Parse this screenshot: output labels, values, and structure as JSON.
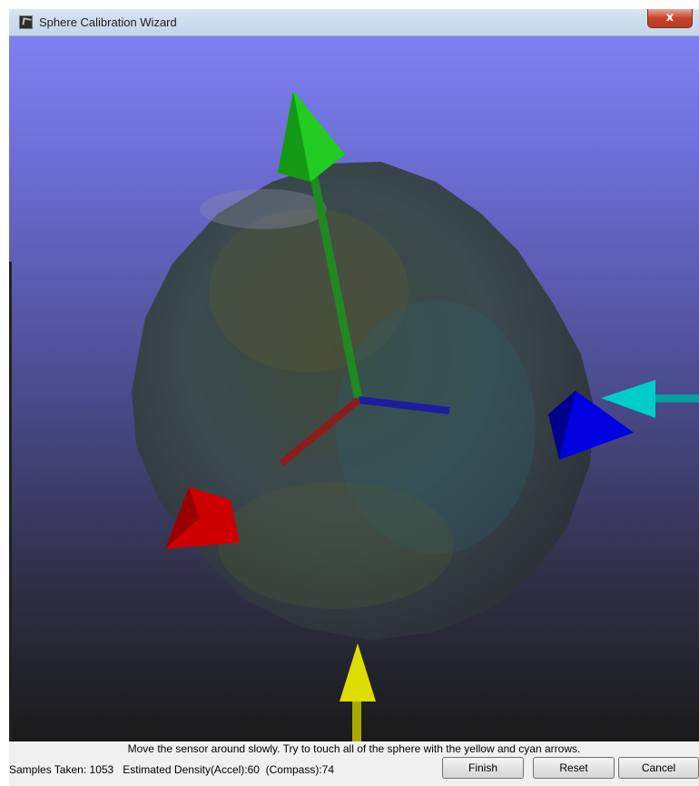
{
  "window": {
    "title": "Sphere Calibration Wizard",
    "close_label": "x",
    "icon": "app-icon"
  },
  "viewport": {
    "background_top": "#7f80f2",
    "background_bottom": "#1a1a1a",
    "axis_colors": {
      "x": "#dd0000",
      "y": "#00cc00",
      "z": "#0000dd"
    },
    "indicator_colors": {
      "accel": "#dddd00",
      "compass": "#00cccc"
    }
  },
  "instructions": "Move the sensor around slowly.  Try to touch all of the sphere with the yellow and cyan arrows.",
  "status": {
    "samples_label": "Samples Taken:",
    "samples_value": "1053",
    "density_accel_label": "Estimated Density(Accel):",
    "density_accel_value": "60",
    "density_compass_label": "(Compass):",
    "density_compass_value": "74"
  },
  "buttons": {
    "finish": "Finish",
    "reset": "Reset",
    "cancel": "Cancel"
  }
}
